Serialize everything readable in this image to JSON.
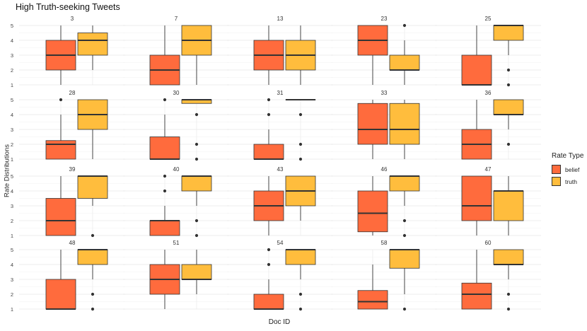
{
  "chart_data": {
    "type": "boxplot",
    "title": "High Truth-seeking Tweets",
    "xlabel": "Doc ID",
    "ylabel": "Rate Distributions",
    "ylim": [
      1,
      5
    ],
    "yticks": [
      1,
      2,
      3,
      4,
      5
    ],
    "grid": true,
    "legend": {
      "title": "Rate Type",
      "position": "right",
      "entries": [
        {
          "label": "belief",
          "color": "#FF6B3D"
        },
        {
          "label": "truth",
          "color": "#FFBD3D"
        }
      ]
    },
    "series_names": [
      "belief",
      "truth"
    ],
    "facets": [
      {
        "id": "3",
        "belief": {
          "min": 1,
          "q1": 2,
          "median": 3,
          "q3": 4,
          "max": 5,
          "outliers": []
        },
        "truth": {
          "min": 2,
          "q1": 3,
          "median": 4,
          "q3": 4.5,
          "max": 5,
          "outliers": []
        }
      },
      {
        "id": "7",
        "belief": {
          "min": 1,
          "q1": 1,
          "median": 2,
          "q3": 3,
          "max": 5,
          "outliers": []
        },
        "truth": {
          "min": 1,
          "q1": 3,
          "median": 4,
          "q3": 5,
          "max": 5,
          "outliers": []
        }
      },
      {
        "id": "13",
        "belief": {
          "min": 1,
          "q1": 2,
          "median": 3,
          "q3": 4,
          "max": 5,
          "outliers": []
        },
        "truth": {
          "min": 1,
          "q1": 2,
          "median": 3,
          "q3": 4,
          "max": 5,
          "outliers": []
        }
      },
      {
        "id": "23",
        "belief": {
          "min": 1,
          "q1": 3,
          "median": 4,
          "q3": 5,
          "max": 5,
          "outliers": []
        },
        "truth": {
          "min": 1,
          "q1": 2,
          "median": 2,
          "q3": 3,
          "max": 4,
          "outliers": [
            5
          ]
        }
      },
      {
        "id": "25",
        "belief": {
          "min": 1,
          "q1": 1,
          "median": 1,
          "q3": 3,
          "max": 5,
          "outliers": []
        },
        "truth": {
          "min": 3,
          "q1": 4,
          "median": 5,
          "q3": 5,
          "max": 5,
          "outliers": [
            2,
            1
          ]
        }
      },
      {
        "id": "28",
        "belief": {
          "min": 1,
          "q1": 1,
          "median": 2,
          "q3": 2.25,
          "max": 4,
          "outliers": [
            5
          ]
        },
        "truth": {
          "min": 1,
          "q1": 3,
          "median": 4,
          "q3": 5,
          "max": 5,
          "outliers": []
        }
      },
      {
        "id": "30",
        "belief": {
          "min": 1,
          "q1": 1,
          "median": 1,
          "q3": 2.5,
          "max": 4,
          "outliers": [
            5
          ]
        },
        "truth": {
          "min": 4.75,
          "q1": 4.75,
          "median": 5,
          "q3": 5,
          "max": 5,
          "outliers": [
            4,
            2,
            1
          ]
        }
      },
      {
        "id": "31",
        "belief": {
          "min": 1,
          "q1": 1,
          "median": 1,
          "q3": 2,
          "max": 3,
          "outliers": [
            5,
            4
          ]
        },
        "truth": {
          "min": 5,
          "q1": 5,
          "median": 5,
          "q3": 5,
          "max": 5,
          "outliers": [
            4,
            2,
            1
          ]
        }
      },
      {
        "id": "33",
        "belief": {
          "min": 1,
          "q1": 2,
          "median": 3,
          "q3": 4.75,
          "max": 5,
          "outliers": []
        },
        "truth": {
          "min": 1,
          "q1": 2,
          "median": 3,
          "q3": 4.75,
          "max": 5,
          "outliers": []
        }
      },
      {
        "id": "36",
        "belief": {
          "min": 1,
          "q1": 1,
          "median": 2,
          "q3": 3,
          "max": 5,
          "outliers": []
        },
        "truth": {
          "min": 3,
          "q1": 4,
          "median": 4,
          "q3": 5,
          "max": 5,
          "outliers": [
            2
          ]
        }
      },
      {
        "id": "39",
        "belief": {
          "min": 1,
          "q1": 1,
          "median": 2,
          "q3": 3.5,
          "max": 5,
          "outliers": []
        },
        "truth": {
          "min": 3,
          "q1": 3.5,
          "median": 5,
          "q3": 5,
          "max": 5,
          "outliers": [
            1
          ]
        }
      },
      {
        "id": "40",
        "belief": {
          "min": 1,
          "q1": 1,
          "median": 2,
          "q3": 2,
          "max": 3,
          "outliers": [
            5,
            4
          ]
        },
        "truth": {
          "min": 3,
          "q1": 4,
          "median": 5,
          "q3": 5,
          "max": 5,
          "outliers": [
            2,
            1
          ]
        }
      },
      {
        "id": "43",
        "belief": {
          "min": 1,
          "q1": 2,
          "median": 3,
          "q3": 4,
          "max": 5,
          "outliers": []
        },
        "truth": {
          "min": 2,
          "q1": 3,
          "median": 4,
          "q3": 5,
          "max": 5,
          "outliers": []
        }
      },
      {
        "id": "46",
        "belief": {
          "min": 1,
          "q1": 1.25,
          "median": 2.5,
          "q3": 4,
          "max": 5,
          "outliers": []
        },
        "truth": {
          "min": 3,
          "q1": 4,
          "median": 5,
          "q3": 5,
          "max": 5,
          "outliers": [
            2,
            1
          ]
        }
      },
      {
        "id": "47",
        "belief": {
          "min": 1,
          "q1": 2,
          "median": 3,
          "q3": 5,
          "max": 5,
          "outliers": []
        },
        "truth": {
          "min": 1,
          "q1": 2,
          "median": 4,
          "q3": 4,
          "max": 5,
          "outliers": []
        }
      },
      {
        "id": "48",
        "belief": {
          "min": 1,
          "q1": 1,
          "median": 1,
          "q3": 3,
          "max": 5,
          "outliers": []
        },
        "truth": {
          "min": 3,
          "q1": 4,
          "median": 5,
          "q3": 5,
          "max": 5,
          "outliers": [
            2,
            1
          ]
        }
      },
      {
        "id": "51",
        "belief": {
          "min": 1,
          "q1": 2,
          "median": 3,
          "q3": 4,
          "max": 5,
          "outliers": []
        },
        "truth": {
          "min": 2,
          "q1": 3,
          "median": 3,
          "q3": 4,
          "max": 5,
          "outliers": []
        }
      },
      {
        "id": "54",
        "belief": {
          "min": 1,
          "q1": 1,
          "median": 1,
          "q3": 2,
          "max": 3,
          "outliers": [
            5,
            4
          ]
        },
        "truth": {
          "min": 3,
          "q1": 4,
          "median": 5,
          "q3": 5,
          "max": 5,
          "outliers": [
            2,
            1
          ]
        }
      },
      {
        "id": "58",
        "belief": {
          "min": 1,
          "q1": 1,
          "median": 1.5,
          "q3": 2.25,
          "max": 4,
          "outliers": []
        },
        "truth": {
          "min": 2,
          "q1": 3.75,
          "median": 5,
          "q3": 5,
          "max": 5,
          "outliers": [
            1
          ]
        }
      },
      {
        "id": "60",
        "belief": {
          "min": 1,
          "q1": 1,
          "median": 2,
          "q3": 2.75,
          "max": 5,
          "outliers": []
        },
        "truth": {
          "min": 3,
          "q1": 4,
          "median": 4,
          "q3": 5,
          "max": 5,
          "outliers": [
            2,
            1
          ]
        }
      }
    ]
  }
}
